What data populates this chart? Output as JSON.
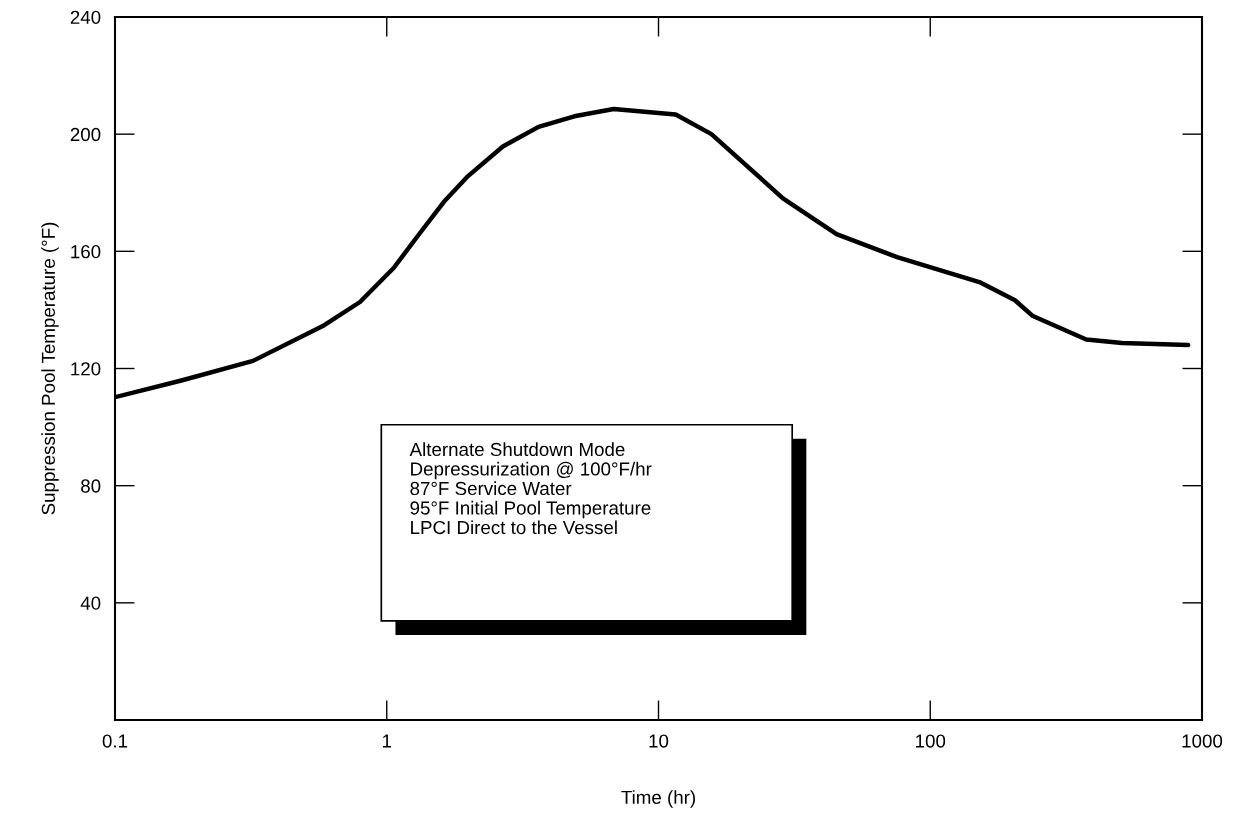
{
  "chart_data": {
    "type": "line",
    "xlabel": "Time (hr)",
    "ylabel": "Suppression Pool Temperature (°F)",
    "log": "x",
    "xlim": [
      0.1,
      1000
    ],
    "xticks": [
      0.1,
      1,
      10,
      100,
      1000
    ],
    "ylim": [
      0,
      240
    ],
    "yticks": [
      40,
      80,
      120,
      160,
      200,
      240
    ],
    "grid": false,
    "legend": false,
    "marker": "none",
    "line_style": "solid",
    "annotations": [
      "Alternate Shutdown Mode\nDepressurization @ 100°F/hr\n87°F Service Water\n95°F Initial Pool Temperature\nLPCI Direct to the Vessel"
    ],
    "series": [
      {
        "color": "#000000",
        "x": [
          0.1,
          0.1755,
          0.322,
          0.589,
          0.797,
          1.06,
          1.334,
          1.623,
          1.976,
          2.675,
          3.62,
          4.9,
          6.84,
          10.75,
          11.57,
          15.66,
          28.7,
          45.2,
          75.5,
          151.6,
          205,
          238.6,
          375,
          508,
          889
        ],
        "values": [
          110.2,
          115.9,
          122.6,
          134.8,
          142.7,
          154.3,
          166.6,
          176.9,
          185.4,
          195.8,
          202.5,
          206.1,
          208.6,
          207,
          206.7,
          200,
          178.1,
          165.9,
          158,
          149.5,
          143.3,
          137.9,
          129.9,
          128.7,
          128
        ]
      }
    ]
  }
}
